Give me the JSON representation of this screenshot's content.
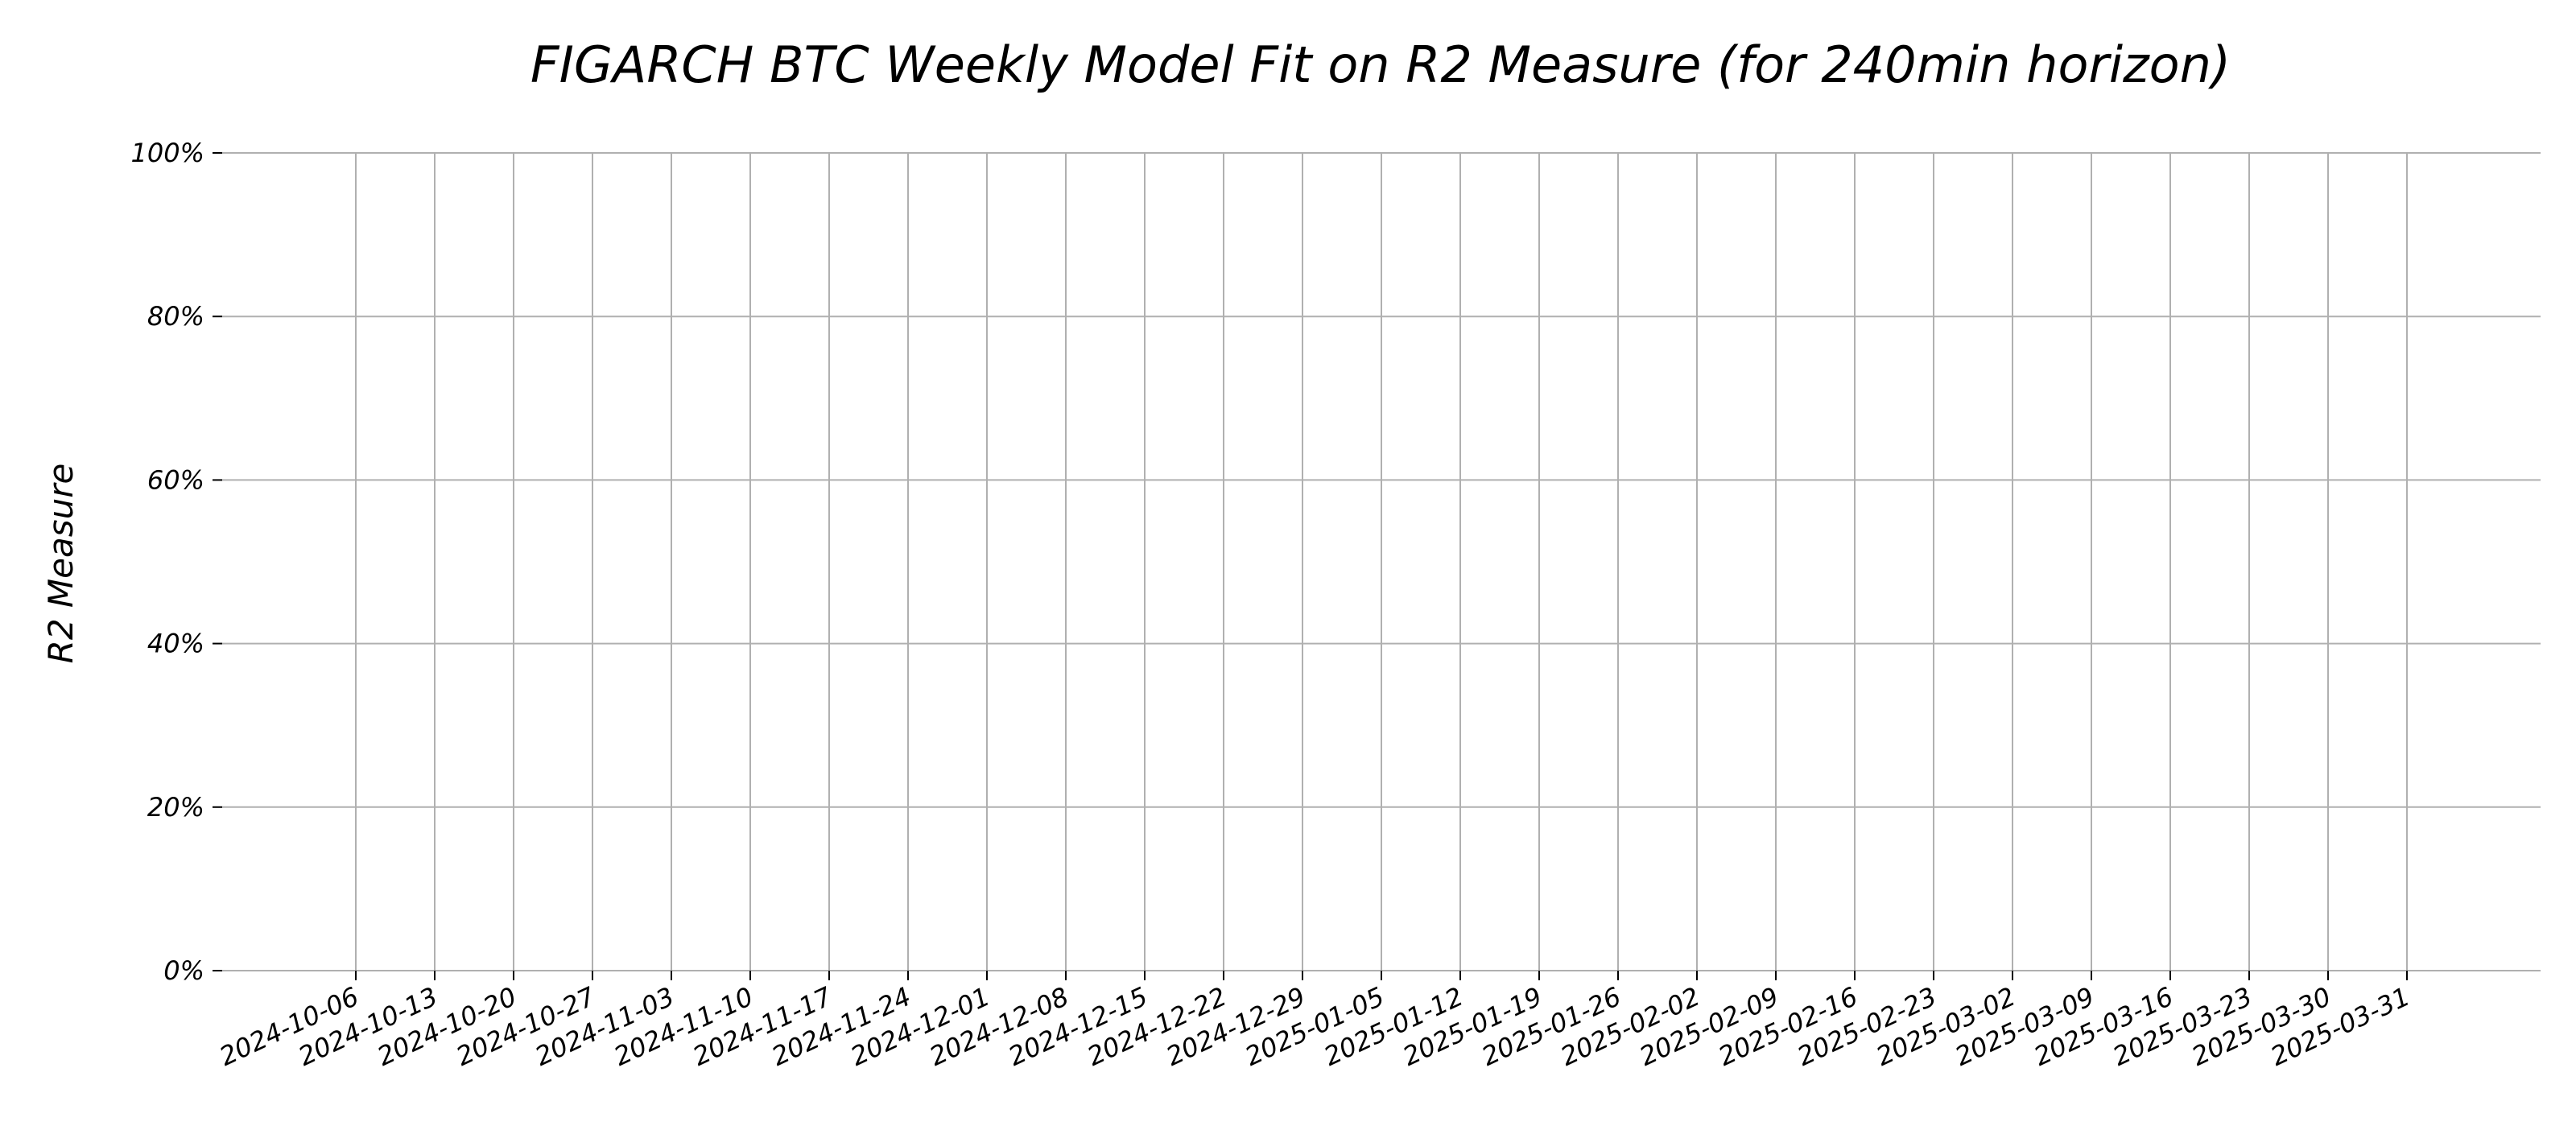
{
  "chart_data": {
    "type": "line",
    "title": "FIGARCH BTC Weekly Model Fit on R2 Measure (for 240min horizon)",
    "xlabel": "",
    "ylabel": "R2 Measure",
    "x_ticks": [
      "2024-10-06",
      "2024-10-13",
      "2024-10-20",
      "2024-10-27",
      "2024-11-03",
      "2024-11-10",
      "2024-11-17",
      "2024-11-24",
      "2024-12-01",
      "2024-12-08",
      "2024-12-15",
      "2024-12-22",
      "2024-12-29",
      "2025-01-05",
      "2025-01-12",
      "2025-01-19",
      "2025-01-26",
      "2025-02-02",
      "2025-02-09",
      "2025-02-16",
      "2025-02-23",
      "2025-03-02",
      "2025-03-09",
      "2025-03-16",
      "2025-03-23",
      "2025-03-30",
      "2025-03-31"
    ],
    "y_ticks": [
      "0%",
      "20%",
      "40%",
      "60%",
      "80%",
      "100%"
    ],
    "ylim": [
      0,
      100
    ],
    "series": [],
    "grid": true,
    "legend": false
  }
}
